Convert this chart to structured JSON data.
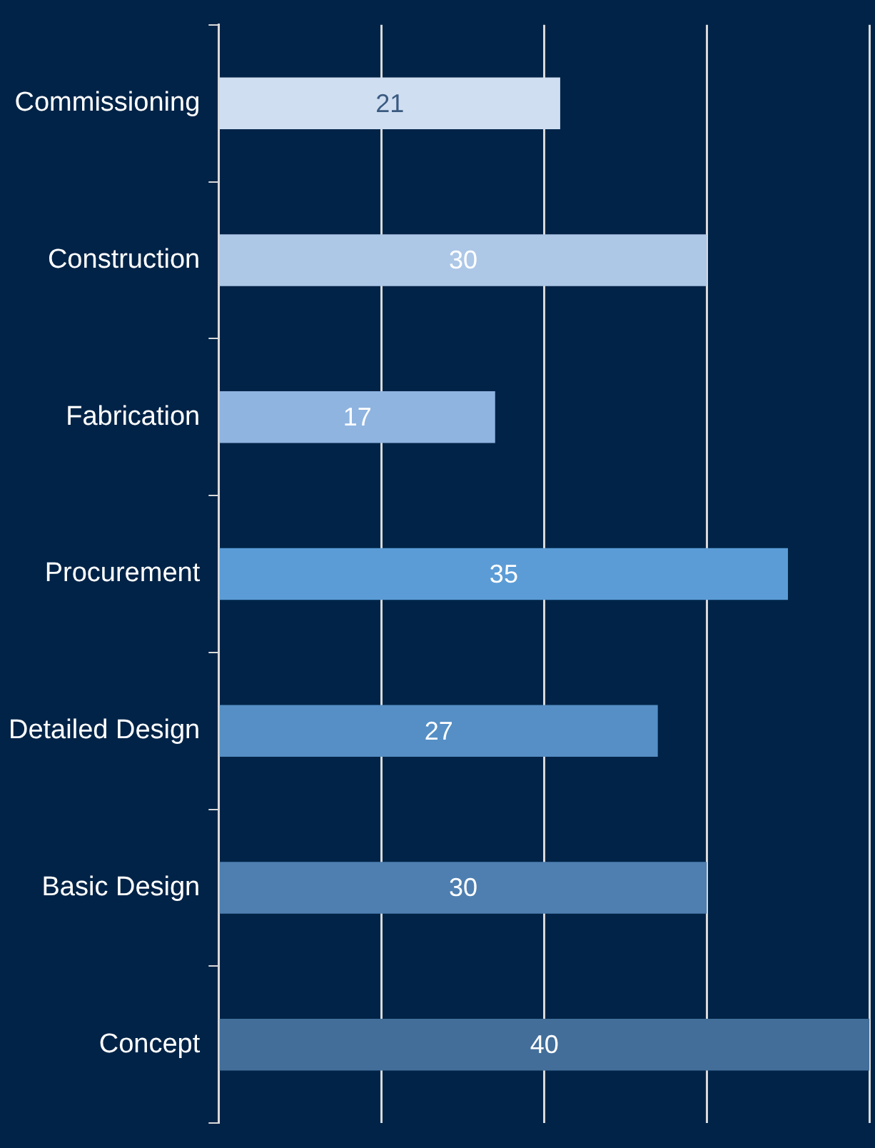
{
  "chart_data": {
    "type": "bar",
    "orientation": "horizontal",
    "categories": [
      "Commissioning",
      "Construction",
      "Fabrication",
      "Procurement",
      "Detailed Design",
      "Basic Design",
      "Concept"
    ],
    "values": [
      21,
      30,
      17,
      35,
      27,
      30,
      40
    ],
    "colors": [
      "#cfdef1",
      "#adc7e7",
      "#8fb4e0",
      "#5b9cd6",
      "#558fc5",
      "#4e7fb0",
      "#436e9a"
    ],
    "xlim": [
      0,
      40
    ],
    "xticks": [
      0,
      10,
      20,
      30,
      40
    ],
    "tick_labels": "y",
    "grid": "x",
    "data_labels": true,
    "legend": false
  }
}
